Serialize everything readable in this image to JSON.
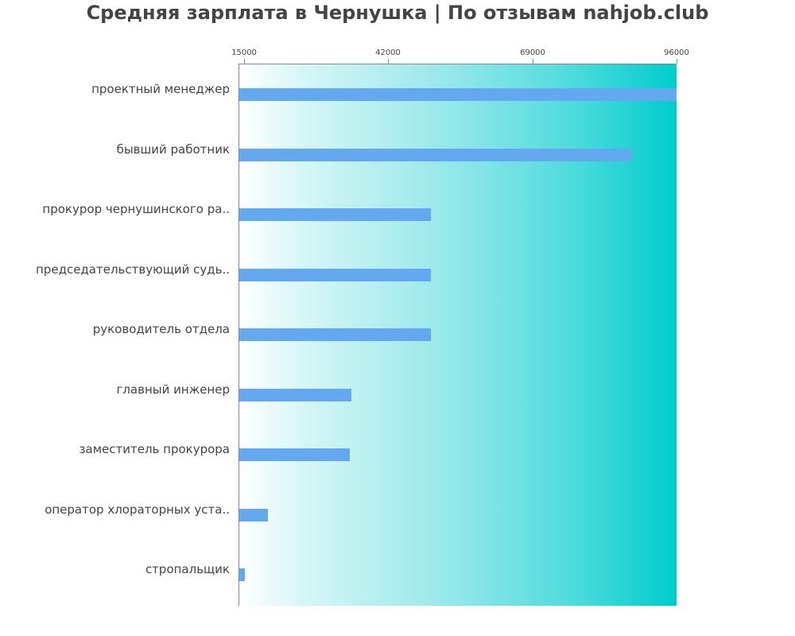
{
  "title": "Средняя зарплата в Чернушка | По отзывам nahjob.club",
  "chart_data": {
    "type": "bar",
    "orientation": "horizontal",
    "title": "Средняя зарплата в Чернушка | По отзывам nahjob.club",
    "xlabel": "",
    "ylabel": "",
    "xlim": [
      13950,
      96000
    ],
    "x_ticks": [
      15000,
      42000,
      69000,
      96000
    ],
    "x_tick_labels": [
      "15000",
      "42000",
      "69000",
      "96000"
    ],
    "x_axis_position": "top",
    "grid": false,
    "legend": null,
    "categories": [
      "проектный менеджер",
      "бывший работник",
      "прокурор чернушинского ра..",
      "председательствующий судь..",
      "руководитель отдела",
      "главный инженер",
      "заместитель прокурора",
      "оператор хлораторных уста..",
      "стропальщик"
    ],
    "values": [
      96000,
      87700,
      50000,
      50000,
      50000,
      35100,
      34800,
      19500,
      15100
    ],
    "colors": {
      "bar": "#64a8f0",
      "background_gradient_start": "#ffffff",
      "background_gradient_end": "#00cccc",
      "text": "#444444",
      "axis": "#888888"
    }
  }
}
